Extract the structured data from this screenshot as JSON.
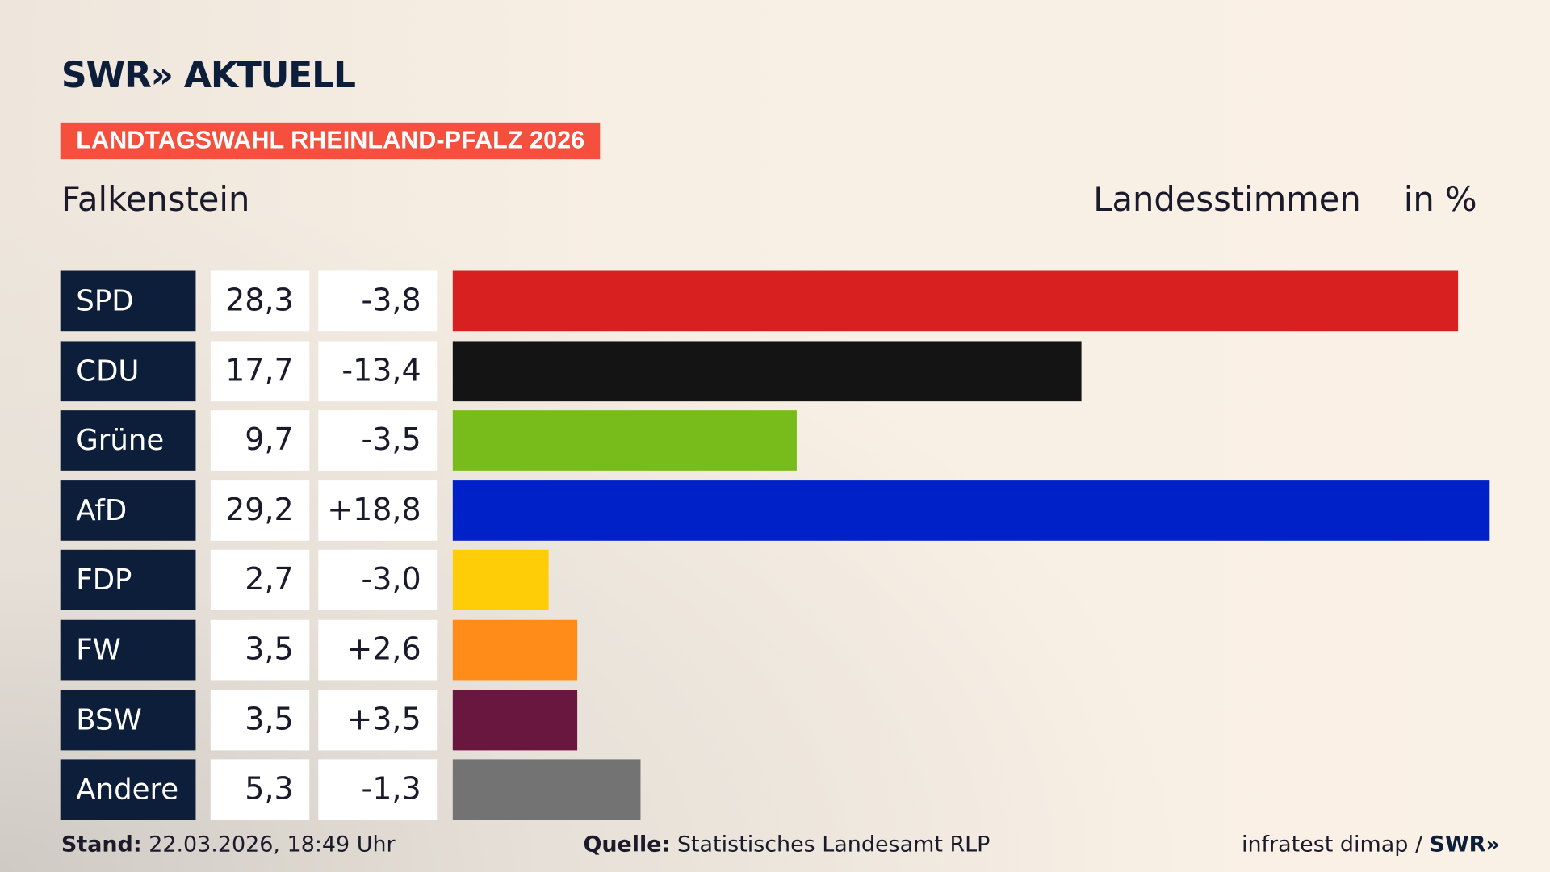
{
  "header": {
    "logo": "SWR» AKTUELL",
    "banner": "LANDTAGSWAHL RHEINLAND-PFALZ 2026",
    "place": "Falkenstein",
    "vote_type": "Landesstimmen",
    "unit": "in %"
  },
  "chart_data": {
    "type": "bar",
    "orientation": "horizontal",
    "categories": [
      "SPD",
      "CDU",
      "Grüne",
      "AfD",
      "FDP",
      "FW",
      "BSW",
      "Andere"
    ],
    "values": [
      28.3,
      17.7,
      9.7,
      29.2,
      2.7,
      3.5,
      3.5,
      5.3
    ],
    "value_labels": [
      "28,3",
      "17,7",
      "9,7",
      "29,2",
      "2,7",
      "3,5",
      "3,5",
      "5,3"
    ],
    "diff_labels": [
      "-3,8",
      "-13,4",
      "-3,5",
      "+18,8",
      "-3,0",
      "+2,6",
      "+3,5",
      "-1,3"
    ],
    "colors": [
      "#d92020",
      "#141414",
      "#78bc1b",
      "#0021c8",
      "#ffcc08",
      "#ff8c19",
      "#6a173f",
      "#737373"
    ],
    "xlim": [
      0,
      29.2
    ]
  },
  "footer": {
    "stand_label": "Stand:",
    "stand_value": "22.03.2026, 18:49 Uhr",
    "source_label": "Quelle:",
    "source_value": "Statistisches Landesamt RLP",
    "credit": "infratest dimap /",
    "credit_logo": "SWR»"
  }
}
